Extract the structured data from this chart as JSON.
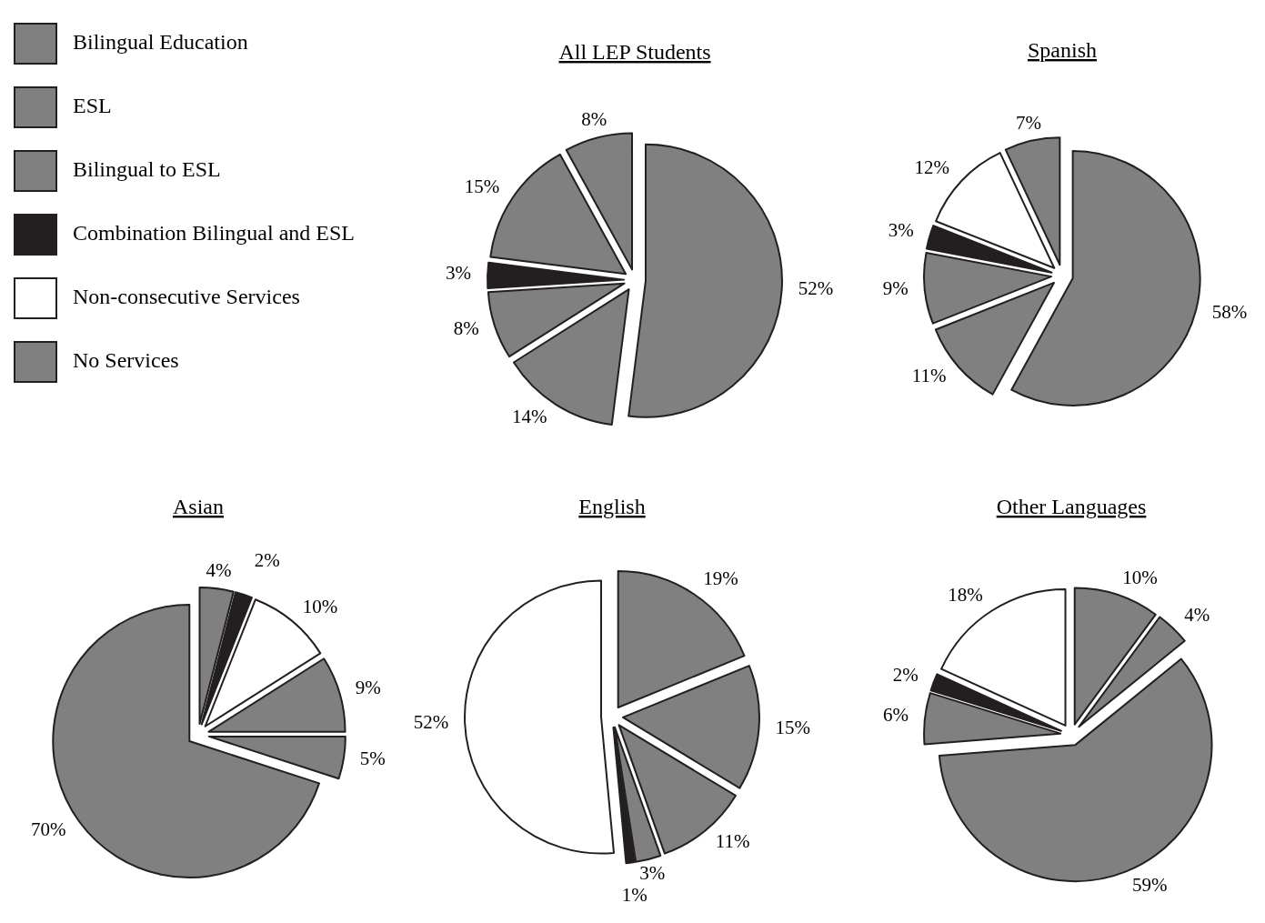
{
  "chart_data": [
    {
      "type": "pie",
      "title": "All LEP Students",
      "categories": [
        null,
        null,
        null,
        null,
        null,
        null
      ],
      "values": [
        52,
        14,
        8,
        3,
        15,
        8
      ],
      "value_labels": [
        "52%",
        "14%",
        "8%",
        "3%",
        "15%",
        "8%"
      ],
      "colors": [
        "#808080",
        "#808080",
        "#808080",
        "#231f20",
        "#808080",
        "#808080"
      ]
    },
    {
      "type": "pie",
      "title": "Spanish",
      "categories": [
        "Bilingual Education",
        "ESL",
        "Bilingual to ESL",
        "Combination Bilingual and ESL",
        "Non-consecutive Services",
        "No Services"
      ],
      "values": [
        58,
        11,
        9,
        3,
        12,
        7
      ],
      "value_labels": [
        "58%",
        "11%",
        "9%",
        "3%",
        "12%",
        "7%"
      ],
      "colors": [
        "#808080",
        "#808080",
        "#808080",
        "#231f20",
        "#ffffff",
        "#808080"
      ],
      "legend": "left"
    },
    {
      "type": "pie",
      "title": "Asian",
      "categories": [
        null,
        null,
        null,
        null,
        null,
        null
      ],
      "values": [
        4,
        2,
        10,
        9,
        5,
        70
      ],
      "value_labels": [
        "4%",
        "2%",
        "10%",
        "9%",
        "5%",
        "70%"
      ],
      "colors": [
        "#808080",
        "#231f20",
        "#ffffff",
        "#808080",
        "#808080",
        "#808080"
      ]
    },
    {
      "type": "pie",
      "title": "English",
      "categories": [
        null,
        null,
        null,
        null,
        null,
        null
      ],
      "values": [
        19,
        15,
        11,
        3,
        1,
        52
      ],
      "value_labels": [
        "19%",
        "15%",
        "11%",
        "3%",
        "1%",
        "52%"
      ],
      "colors": [
        "#808080",
        "#808080",
        "#808080",
        "#808080",
        "#231f20",
        "#ffffff"
      ]
    },
    {
      "type": "pie",
      "title": "Other Languages",
      "categories": [
        null,
        null,
        null,
        null,
        null,
        null
      ],
      "values": [
        10,
        4,
        59,
        6,
        2,
        18
      ],
      "value_labels": [
        "10%",
        "4%",
        "59%",
        "6%",
        "2%",
        "18%"
      ],
      "colors": [
        "#808080",
        "#808080",
        "#808080",
        "#808080",
        "#231f20",
        "#ffffff"
      ]
    }
  ]
}
